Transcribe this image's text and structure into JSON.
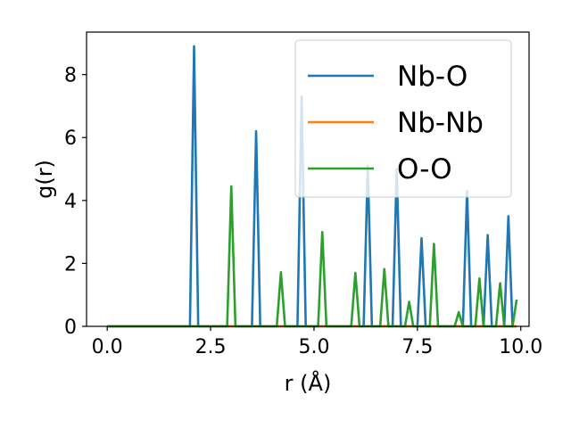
{
  "chart_data": {
    "type": "line",
    "xlabel": "r (Å)",
    "ylabel": "g(r)",
    "xlim": [
      -0.5,
      10.2
    ],
    "ylim": [
      0,
      9.35
    ],
    "xticks": [
      0.0,
      2.5,
      5.0,
      7.5,
      10.0
    ],
    "xtick_labels": [
      "0.0",
      "2.5",
      "5.0",
      "7.5",
      "10.0"
    ],
    "yticks": [
      0,
      2,
      4,
      6,
      8
    ],
    "ytick_labels": [
      "0",
      "2",
      "4",
      "6",
      "8"
    ],
    "grid": false,
    "legend_position": "top-right",
    "series": [
      {
        "name": "Nb-O",
        "color": "#1f77b4",
        "x": [
          0.0,
          2.0,
          2.1,
          2.2,
          3.5,
          3.6,
          3.7,
          4.6,
          4.7,
          4.8,
          6.2,
          6.3,
          6.4,
          6.9,
          7.0,
          7.1,
          7.5,
          7.6,
          7.7,
          8.6,
          8.7,
          8.8,
          9.1,
          9.2,
          9.3,
          9.6,
          9.7,
          9.8,
          9.9
        ],
        "y": [
          0,
          0,
          8.9,
          0,
          0,
          6.2,
          0,
          0,
          7.3,
          0,
          0,
          5.1,
          0,
          0,
          5.0,
          0,
          0,
          2.8,
          0,
          0,
          4.3,
          0,
          0,
          2.9,
          0,
          0,
          3.5,
          0,
          0
        ]
      },
      {
        "name": "Nb-Nb",
        "color": "#ff7f0e",
        "x": [
          0.0,
          9.9
        ],
        "y": [
          0,
          0
        ]
      },
      {
        "name": "O-O",
        "color": "#2ca02c",
        "x": [
          0.0,
          2.9,
          3.0,
          3.1,
          4.1,
          4.2,
          4.3,
          5.1,
          5.2,
          5.3,
          5.9,
          6.0,
          6.1,
          6.6,
          6.7,
          6.8,
          7.2,
          7.3,
          7.4,
          7.8,
          7.9,
          8.0,
          8.4,
          8.5,
          8.6,
          8.9,
          9.0,
          9.1,
          9.4,
          9.5,
          9.6,
          9.8,
          9.9
        ],
        "y": [
          0,
          0,
          4.45,
          0,
          0,
          1.72,
          0,
          0,
          3.0,
          0,
          0,
          1.7,
          0,
          0,
          1.82,
          0,
          0,
          0.78,
          0,
          0,
          2.62,
          0,
          0,
          0.45,
          0,
          0,
          1.52,
          0,
          0,
          1.37,
          0,
          0,
          0.85
        ]
      }
    ]
  }
}
